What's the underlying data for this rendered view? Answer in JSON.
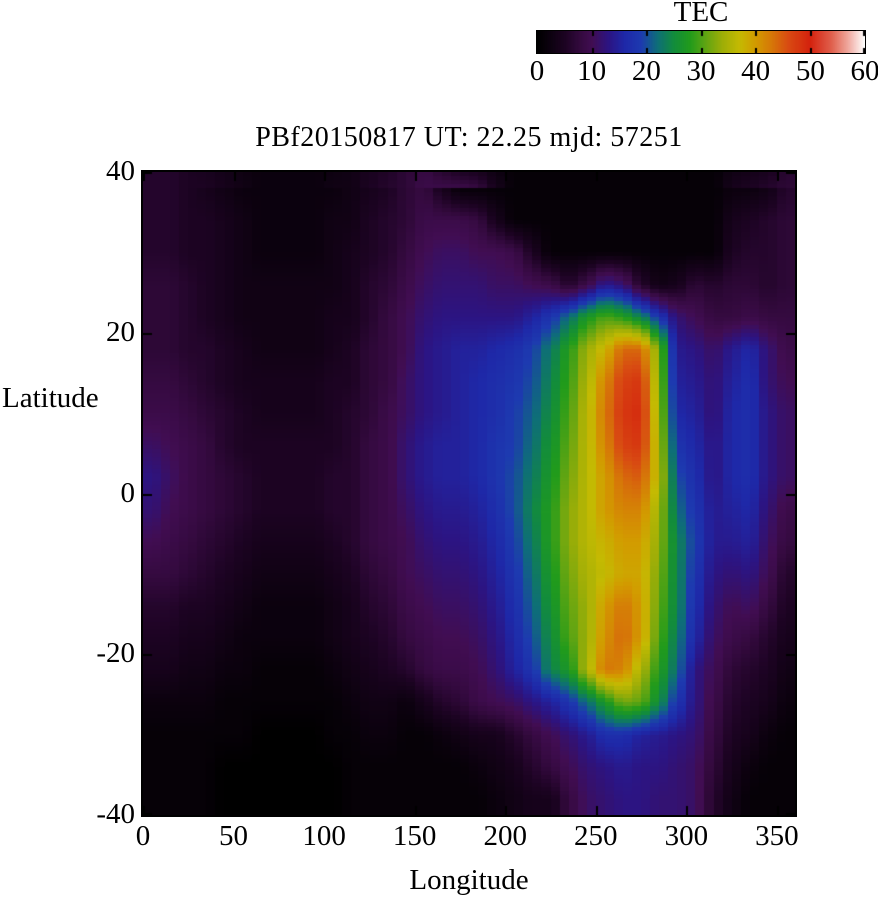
{
  "title": "PBf20150817  UT: 22.25  mjd: 57251",
  "axes": {
    "x": {
      "label": "Longitude",
      "min": 0,
      "max": 360,
      "ticks": [
        0,
        50,
        100,
        150,
        200,
        250,
        300,
        350
      ]
    },
    "y": {
      "label": "Latitude",
      "min": -40,
      "max": 40,
      "ticks": [
        40,
        20,
        0,
        -20,
        -40
      ]
    },
    "colorbar": {
      "label": "TEC",
      "min": 0,
      "max": 60,
      "ticks": [
        0,
        10,
        20,
        30,
        40,
        50,
        60
      ]
    }
  },
  "chart_data": {
    "type": "heatmap",
    "title": "PBf20150817  UT: 22.25  mjd: 57251",
    "xlabel": "Longitude",
    "ylabel": "Latitude",
    "colorbar_label": "TEC",
    "xlim": [
      0,
      360
    ],
    "ylim": [
      -40,
      40
    ],
    "clim": [
      0,
      60
    ],
    "grid": false,
    "lon_centers": [
      5,
      15,
      25,
      35,
      45,
      55,
      65,
      75,
      85,
      95,
      105,
      115,
      125,
      135,
      145,
      155,
      165,
      175,
      185,
      195,
      205,
      215,
      225,
      235,
      245,
      255,
      265,
      275,
      285,
      295,
      305,
      315,
      325,
      335,
      345,
      355
    ],
    "lat_centers": [
      38,
      34,
      30,
      26,
      22,
      18,
      14,
      10,
      6,
      2,
      -2,
      -6,
      -10,
      -14,
      -18,
      -22,
      -26,
      -30,
      -34,
      -38
    ],
    "values": [
      [
        6,
        6,
        5,
        4,
        3,
        2,
        2,
        2,
        2,
        2,
        2,
        3,
        4,
        5,
        7,
        8,
        4,
        1,
        1,
        1,
        1,
        1,
        1,
        1,
        1,
        1,
        1,
        1,
        1,
        1,
        1,
        1,
        2,
        2,
        3,
        6
      ],
      [
        6,
        6,
        5,
        5,
        4,
        3,
        2,
        2,
        2,
        2,
        3,
        3,
        5,
        6,
        7,
        9,
        9,
        9,
        8,
        4,
        1,
        1,
        1,
        1,
        1,
        1,
        1,
        1,
        1,
        1,
        1,
        1,
        4,
        5,
        6,
        7
      ],
      [
        6,
        6,
        5,
        5,
        4,
        3,
        2,
        2,
        2,
        2,
        3,
        4,
        5,
        6,
        8,
        10,
        11,
        11,
        10,
        10,
        9,
        5,
        1,
        1,
        1,
        1,
        1,
        1,
        1,
        1,
        1,
        1,
        5,
        6,
        6,
        7
      ],
      [
        7,
        7,
        6,
        5,
        4,
        3,
        3,
        3,
        3,
        3,
        3,
        4,
        6,
        7,
        9,
        11,
        12,
        12,
        12,
        11,
        11,
        10,
        9,
        6,
        9,
        14,
        12,
        6,
        3,
        4,
        7,
        6,
        7,
        7,
        6,
        7
      ],
      [
        7,
        7,
        6,
        5,
        4,
        3,
        3,
        3,
        3,
        3,
        4,
        4,
        6,
        8,
        10,
        12,
        13,
        13,
        13,
        13,
        13,
        15,
        18,
        22,
        27,
        30,
        28,
        24,
        18,
        12,
        10,
        8,
        8,
        9,
        8,
        8
      ],
      [
        7,
        7,
        6,
        6,
        5,
        4,
        3,
        3,
        3,
        3,
        4,
        5,
        7,
        8,
        10,
        13,
        14,
        15,
        15,
        16,
        17,
        19,
        23,
        28,
        34,
        38,
        44,
        44,
        32,
        14,
        13,
        11,
        14,
        16,
        12,
        9
      ],
      [
        8,
        8,
        7,
        6,
        5,
        4,
        4,
        4,
        4,
        4,
        5,
        5,
        7,
        8,
        11,
        13,
        14,
        15,
        16,
        17,
        18,
        20,
        24,
        29,
        35,
        42,
        47,
        48,
        33,
        15,
        14,
        12,
        15,
        17,
        12,
        10
      ],
      [
        9,
        9,
        8,
        7,
        6,
        5,
        4,
        4,
        4,
        4,
        5,
        6,
        7,
        9,
        11,
        13,
        14,
        15,
        16,
        17,
        19,
        21,
        25,
        30,
        36,
        43,
        48,
        49,
        34,
        16,
        15,
        12,
        16,
        17,
        13,
        11
      ],
      [
        11,
        10,
        9,
        8,
        6,
        5,
        5,
        5,
        5,
        5,
        5,
        6,
        8,
        9,
        12,
        14,
        15,
        15,
        16,
        18,
        19,
        22,
        26,
        31,
        36,
        42,
        47,
        48,
        35,
        18,
        16,
        13,
        16,
        17,
        13,
        11
      ],
      [
        13,
        11,
        9,
        8,
        7,
        6,
        5,
        5,
        5,
        5,
        6,
        6,
        8,
        9,
        12,
        14,
        15,
        15,
        16,
        18,
        20,
        23,
        27,
        32,
        36,
        40,
        44,
        45,
        36,
        20,
        17,
        13,
        16,
        17,
        13,
        11
      ],
      [
        12,
        10,
        9,
        8,
        7,
        6,
        5,
        5,
        5,
        5,
        6,
        6,
        8,
        9,
        11,
        13,
        14,
        14,
        15,
        17,
        20,
        24,
        28,
        33,
        36,
        40,
        42,
        42,
        34,
        22,
        18,
        14,
        15,
        16,
        12,
        9
      ],
      [
        10,
        9,
        8,
        7,
        6,
        5,
        4,
        4,
        4,
        4,
        5,
        6,
        8,
        9,
        10,
        12,
        13,
        13,
        14,
        16,
        19,
        23,
        28,
        33,
        36,
        38,
        40,
        40,
        33,
        24,
        19,
        14,
        14,
        15,
        11,
        8
      ],
      [
        8,
        8,
        7,
        6,
        5,
        4,
        3,
        3,
        3,
        3,
        4,
        5,
        7,
        8,
        10,
        11,
        12,
        12,
        13,
        15,
        18,
        22,
        27,
        32,
        35,
        37,
        39,
        39,
        32,
        24,
        18,
        13,
        12,
        13,
        10,
        6
      ],
      [
        6,
        6,
        5,
        5,
        4,
        3,
        2,
        2,
        2,
        2,
        3,
        4,
        6,
        7,
        9,
        10,
        11,
        11,
        12,
        14,
        17,
        21,
        26,
        31,
        34,
        40,
        43,
        40,
        31,
        24,
        17,
        12,
        10,
        11,
        8,
        5
      ],
      [
        5,
        5,
        4,
        4,
        3,
        2,
        2,
        2,
        2,
        2,
        3,
        4,
        5,
        6,
        8,
        9,
        10,
        10,
        11,
        13,
        16,
        20,
        25,
        30,
        34,
        41,
        44,
        40,
        30,
        23,
        16,
        11,
        9,
        8,
        6,
        4
      ],
      [
        4,
        4,
        3,
        3,
        2,
        2,
        1,
        1,
        1,
        1,
        2,
        3,
        4,
        5,
        6,
        8,
        9,
        9,
        10,
        12,
        15,
        18,
        24,
        27,
        35,
        43,
        42,
        35,
        28,
        22,
        13,
        10,
        7,
        6,
        5,
        3
      ],
      [
        2,
        2,
        2,
        2,
        1,
        1,
        1,
        1,
        1,
        1,
        1,
        2,
        3,
        3,
        2,
        4,
        6,
        7,
        9,
        10,
        11,
        13,
        15,
        18,
        22,
        27,
        32,
        31,
        25,
        18,
        13,
        9,
        6,
        5,
        4,
        2
      ],
      [
        1,
        1,
        1,
        1,
        1,
        1,
        0,
        0,
        0,
        0,
        1,
        1,
        2,
        2,
        1,
        1,
        2,
        3,
        4,
        4,
        6,
        8,
        10,
        12,
        14,
        17,
        17,
        15,
        14,
        13,
        12,
        8,
        5,
        4,
        2,
        1
      ],
      [
        1,
        1,
        1,
        1,
        0,
        0,
        0,
        0,
        0,
        0,
        0,
        1,
        1,
        1,
        1,
        1,
        1,
        1,
        2,
        3,
        4,
        6,
        8,
        10,
        12,
        13,
        14,
        13,
        13,
        12,
        11,
        7,
        4,
        2,
        1,
        1
      ],
      [
        1,
        1,
        1,
        1,
        0,
        0,
        0,
        0,
        0,
        0,
        0,
        1,
        1,
        1,
        1,
        1,
        1,
        1,
        1,
        2,
        3,
        4,
        4,
        8,
        11,
        12,
        13,
        13,
        12,
        12,
        11,
        6,
        3,
        1,
        1,
        1
      ]
    ],
    "palette_stops": [
      [
        0,
        "#000000"
      ],
      [
        5,
        "#1c0322"
      ],
      [
        8,
        "#350a40"
      ],
      [
        10,
        "#410d52"
      ],
      [
        13,
        "#2c1482"
      ],
      [
        16,
        "#1e28a8"
      ],
      [
        19,
        "#1d3ab0"
      ],
      [
        22,
        "#0e6e78"
      ],
      [
        25,
        "#128c3c"
      ],
      [
        28,
        "#219b1b"
      ],
      [
        31,
        "#62a512"
      ],
      [
        34,
        "#9fae07"
      ],
      [
        37,
        "#c4ba02"
      ],
      [
        40,
        "#d29b00"
      ],
      [
        43,
        "#d67708"
      ],
      [
        46,
        "#d84b12"
      ],
      [
        50,
        "#d4220e"
      ],
      [
        54,
        "#e0614e"
      ],
      [
        57,
        "#f0a89e"
      ],
      [
        60,
        "#ffffff"
      ]
    ]
  }
}
